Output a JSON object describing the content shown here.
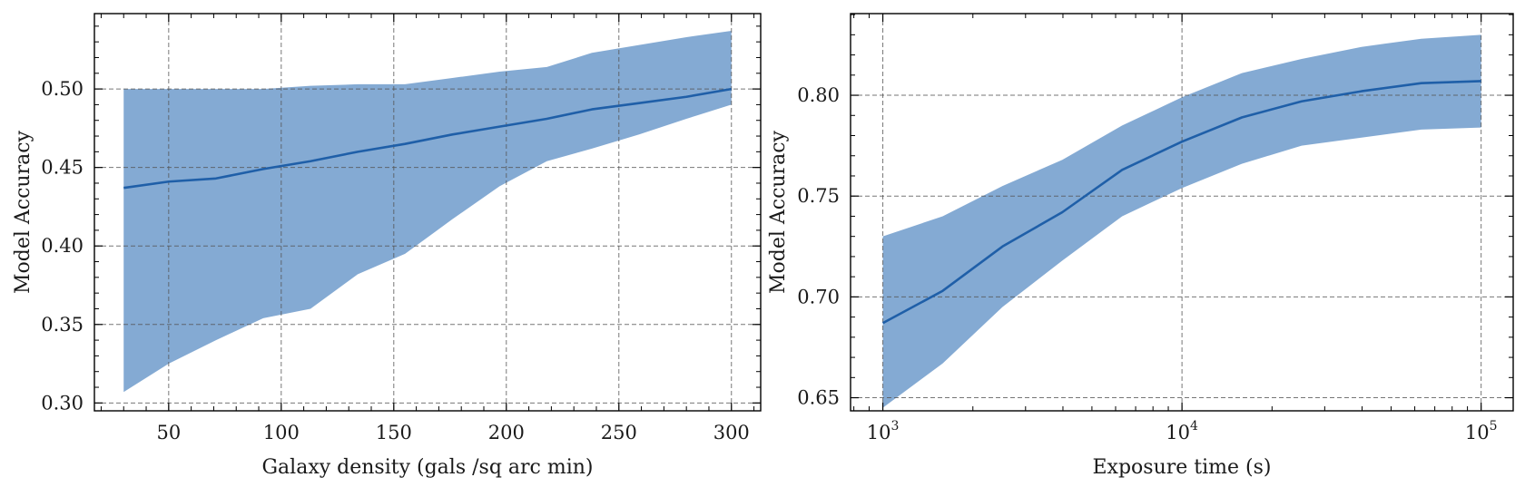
{
  "chart_data": [
    {
      "type": "line",
      "title": "",
      "xlabel": "Galaxy density (gals /sq arc min)",
      "ylabel": "Model Accuracy",
      "xscale": "linear",
      "xlim": [
        17,
        313
      ],
      "ylim": [
        0.295,
        0.548
      ],
      "xticks": [
        50,
        100,
        150,
        200,
        250,
        300
      ],
      "xtick_labels": [
        "50",
        "100",
        "150",
        "200",
        "250",
        "300"
      ],
      "yticks": [
        0.3,
        0.35,
        0.4,
        0.45,
        0.5
      ],
      "ytick_labels": [
        "0.30",
        "0.35",
        "0.40",
        "0.45",
        "0.50"
      ],
      "grid": true,
      "line_color": "#1f5fa8",
      "band_color": "#5b8ec4",
      "series": [
        {
          "x": [
            30,
            50,
            71,
            92,
            113,
            134,
            155,
            176,
            197,
            218,
            238,
            259,
            280,
            300
          ],
          "y": [
            0.437,
            0.441,
            0.443,
            0.449,
            0.454,
            0.46,
            0.465,
            0.471,
            0.476,
            0.481,
            0.487,
            0.491,
            0.495,
            0.5
          ],
          "lower": [
            0.307,
            0.325,
            0.34,
            0.354,
            0.36,
            0.382,
            0.395,
            0.417,
            0.438,
            0.454,
            0.462,
            0.471,
            0.481,
            0.49
          ],
          "upper": [
            0.5,
            0.5,
            0.5,
            0.5,
            0.502,
            0.503,
            0.503,
            0.507,
            0.511,
            0.514,
            0.523,
            0.528,
            0.533,
            0.537
          ]
        }
      ]
    },
    {
      "type": "line",
      "title": "",
      "xlabel": "Exposure time (s)",
      "ylabel": "Model Accuracy",
      "xscale": "log",
      "xlim": [
        780,
        128000
      ],
      "ylim": [
        0.6435,
        0.8405
      ],
      "xticks": [
        1000,
        10000,
        100000
      ],
      "xtick_labels": [
        {
          "base": "10",
          "exp": "3"
        },
        {
          "base": "10",
          "exp": "4"
        },
        {
          "base": "10",
          "exp": "5"
        }
      ],
      "yticks": [
        0.65,
        0.7,
        0.75,
        0.8
      ],
      "ytick_labels": [
        "0.65",
        "0.70",
        "0.75",
        "0.80"
      ],
      "grid": true,
      "line_color": "#1f5fa8",
      "band_color": "#5b8ec4",
      "series": [
        {
          "x": [
            1000,
            1585,
            2512,
            3981,
            6310,
            10000,
            15849,
            25119,
            39811,
            63096,
            100000
          ],
          "y": [
            0.687,
            0.703,
            0.725,
            0.742,
            0.763,
            0.777,
            0.789,
            0.797,
            0.802,
            0.806,
            0.807
          ],
          "lower": [
            0.645,
            0.667,
            0.695,
            0.718,
            0.74,
            0.754,
            0.766,
            0.775,
            0.779,
            0.783,
            0.784
          ],
          "upper": [
            0.73,
            0.74,
            0.755,
            0.768,
            0.785,
            0.799,
            0.811,
            0.818,
            0.824,
            0.828,
            0.83
          ]
        }
      ]
    }
  ]
}
